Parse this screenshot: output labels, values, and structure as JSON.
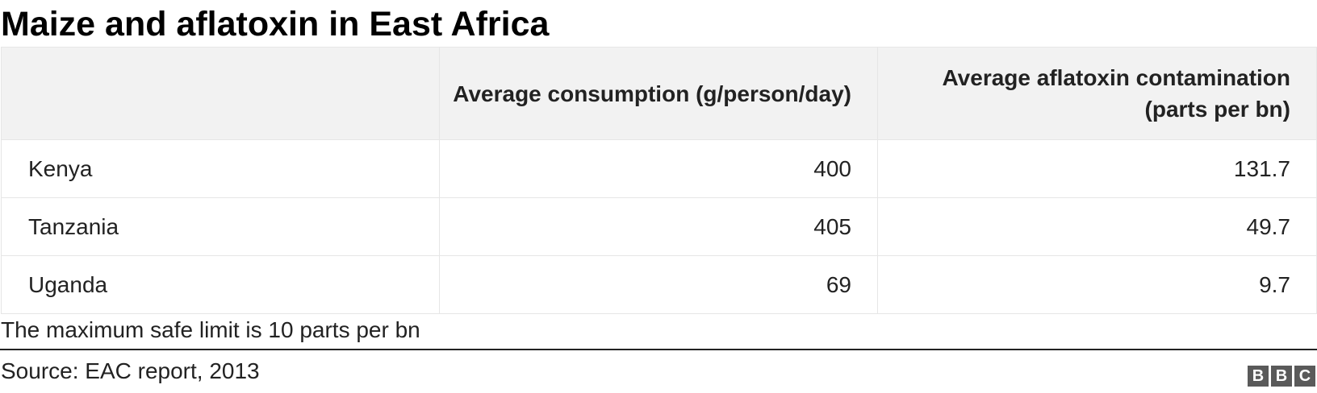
{
  "title": "Maize and aflatoxin in East Africa",
  "table": {
    "headers": [
      "",
      "Average consumption (g/person/day)",
      "Average aflatoxin contamination (parts per bn)"
    ],
    "rows": [
      {
        "country": "Kenya",
        "consumption": "400",
        "contamination": "131.7"
      },
      {
        "country": "Tanzania",
        "consumption": "405",
        "contamination": "49.7"
      },
      {
        "country": "Uganda",
        "consumption": "69",
        "contamination": "9.7"
      }
    ]
  },
  "note": "The maximum safe limit is 10 parts per bn",
  "source": "Source: EAC report, 2013",
  "logo": {
    "letters": [
      "B",
      "B",
      "C"
    ],
    "color": "#5a5a5a"
  },
  "colors": {
    "header_bg": "#f2f2f2",
    "border": "#e6e6e6",
    "text": "#222222"
  }
}
